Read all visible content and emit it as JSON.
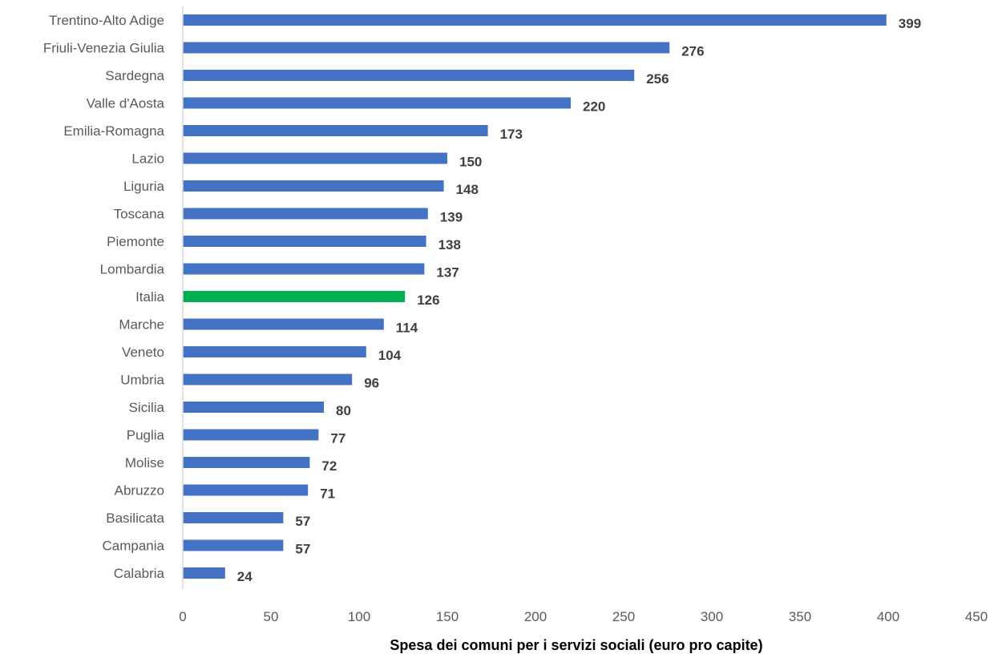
{
  "chart_data": {
    "type": "bar",
    "orientation": "horizontal",
    "categories": [
      "Trentino-Alto Adige",
      "Friuli-Venezia Giulia",
      "Sardegna",
      "Valle d'Aosta",
      "Emilia-Romagna",
      "Lazio",
      "Liguria",
      "Toscana",
      "Piemonte",
      "Lombardia",
      "Italia",
      "Marche",
      "Veneto",
      "Umbria",
      "Sicilia",
      "Puglia",
      "Molise",
      "Abruzzo",
      "Basilicata",
      "Campania",
      "Calabria"
    ],
    "values": [
      399,
      276,
      256,
      220,
      173,
      150,
      148,
      139,
      138,
      137,
      126,
      114,
      104,
      96,
      80,
      77,
      72,
      71,
      57,
      57,
      24
    ],
    "value_labels": [
      "399",
      "276",
      "256",
      "220",
      "173",
      "150",
      "148",
      "139",
      "138",
      "137",
      "126",
      "114",
      "104",
      "96",
      "80",
      "77",
      "72",
      "71",
      "57",
      "57",
      "24"
    ],
    "highlight_category": "Italia",
    "xlabel": "Spesa dei comuni per i servizi sociali (euro pro capite)",
    "ylabel": "",
    "xlim": [
      0,
      450
    ],
    "xticks": [
      0,
      50,
      100,
      150,
      200,
      250,
      300,
      350,
      400,
      450
    ],
    "xtick_labels": [
      "0",
      "50",
      "100",
      "150",
      "200",
      "250",
      "300",
      "350",
      "400",
      "450"
    ],
    "grid": false,
    "legend": "none",
    "colors": {
      "bar": "#4472C4",
      "highlight": "#00B050",
      "axis_line": "#D9D9D9"
    }
  }
}
